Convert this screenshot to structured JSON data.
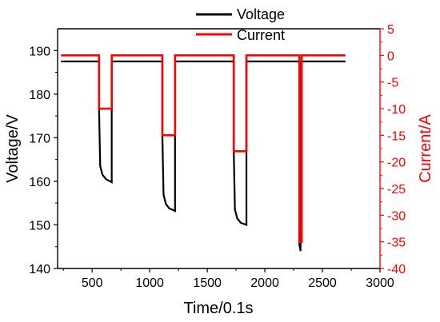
{
  "chart_data": {
    "type": "line",
    "xlabel": "Time/0.1s",
    "ylabel_left": "Voltage/V",
    "ylabel_right": "Current/A",
    "x_ticks": [
      500,
      1000,
      1500,
      2000,
      2500,
      3000
    ],
    "y_left_ticks": [
      140,
      150,
      160,
      170,
      180,
      190
    ],
    "y_right_ticks": [
      5,
      0,
      -5,
      -10,
      -15,
      -20,
      -25,
      -30,
      -35,
      -40
    ],
    "xlim": [
      200,
      3000
    ],
    "ylim_left": [
      140,
      195
    ],
    "ylim_right": [
      -40,
      5
    ],
    "grid": false,
    "legend_position": "top-center",
    "colors": {
      "voltage": "#000000",
      "current": "#ff0000"
    },
    "series": [
      {
        "name": "Voltage",
        "axis": "left",
        "x": [
          230,
          560,
          560,
          570,
          590,
          620,
          670,
          670,
          680,
          1110,
          1110,
          1120,
          1140,
          1170,
          1220,
          1220,
          1230,
          1730,
          1730,
          1740,
          1760,
          1790,
          1840,
          1840,
          1850,
          2300,
          2300,
          2310,
          2310,
          2320,
          2700
        ],
        "y": [
          187.5,
          187.5,
          176.5,
          163.5,
          161.5,
          160.5,
          159.8,
          187.5,
          187.5,
          187.5,
          170.5,
          157.0,
          154.8,
          153.8,
          153.2,
          187.5,
          187.5,
          187.5,
          166.8,
          153.5,
          151.5,
          150.5,
          150.0,
          187.5,
          187.5,
          187.5,
          145.5,
          144.0,
          187.5,
          187.5,
          187.5
        ]
      },
      {
        "name": "Current",
        "axis": "right",
        "x": [
          230,
          560,
          560,
          670,
          670,
          1110,
          1110,
          1220,
          1220,
          1730,
          1730,
          1840,
          1840,
          2300,
          2300,
          2320,
          2320,
          2700
        ],
        "y": [
          0,
          0,
          -10,
          -10,
          0,
          0,
          -15,
          -15,
          0,
          0,
          -18,
          -18,
          0,
          0,
          -35,
          -35,
          0,
          0
        ]
      }
    ]
  }
}
